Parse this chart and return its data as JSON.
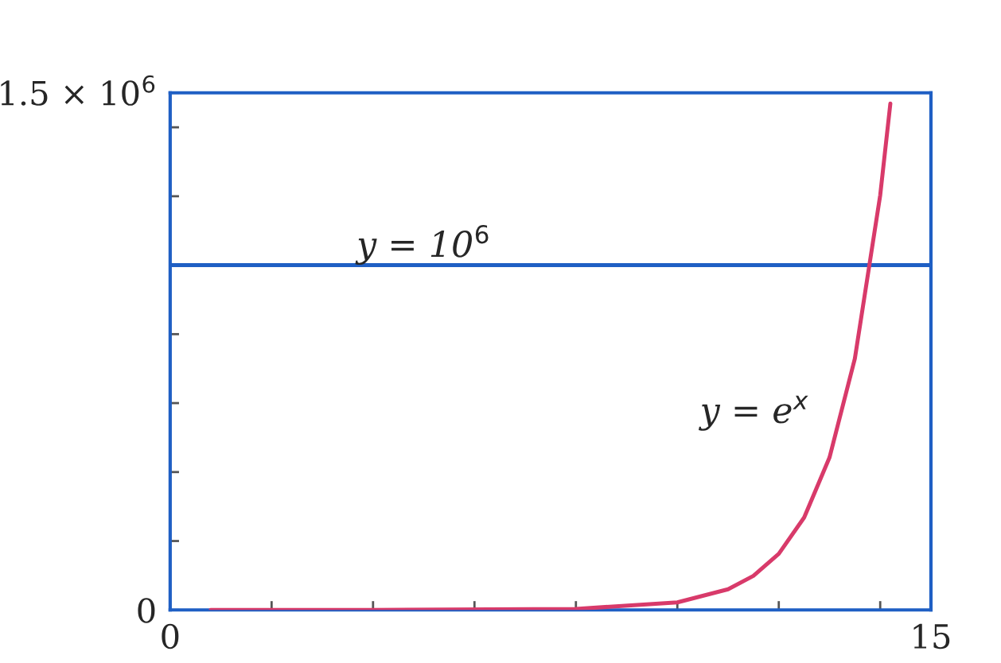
{
  "chart_data": {
    "type": "line",
    "x": [
      0.8,
      4,
      8,
      10,
      11,
      11.5,
      12,
      12.5,
      13,
      13.5,
      14,
      14.2
    ],
    "series": [
      {
        "color": "#d83a6a",
        "values": [
          0,
          0,
          3000,
          22000,
          60000,
          99000,
          163000,
          268000,
          442000,
          729000,
          1203000,
          1469000
        ]
      }
    ],
    "xlim": [
      0,
      15
    ],
    "ylim": [
      0,
      1500000
    ],
    "xticks": [
      0,
      {
        "value": 2,
        "label": null
      },
      {
        "value": 4,
        "label": null
      },
      {
        "value": 6,
        "label": null
      },
      {
        "value": 8,
        "label": null
      },
      {
        "value": 10,
        "label": null
      },
      {
        "value": 12,
        "label": null
      },
      {
        "value": 14,
        "label": null
      },
      15
    ],
    "yticks": [
      0,
      {
        "value": 200000,
        "label": null
      },
      {
        "value": 400000,
        "label": null
      },
      {
        "value": 600000,
        "label": null
      },
      {
        "value": 800000,
        "label": null
      },
      {
        "value": 1000000,
        "label": null
      },
      {
        "value": 1200000,
        "label": null
      },
      {
        "value": 1400000,
        "label": null
      },
      {
        "value": 1500000,
        "label": "1.5 × 10$^{6}$"
      }
    ],
    "ref_lines": [
      {
        "axis": "y",
        "value": 1000000,
        "color": "#1f5fc4"
      }
    ],
    "annotations": [
      {
        "text": "y = 10$^{6}$",
        "x": 5,
        "y": 1000000
      },
      "y = e$^{x}$"
    ],
    "grid": false,
    "legend": false
  }
}
